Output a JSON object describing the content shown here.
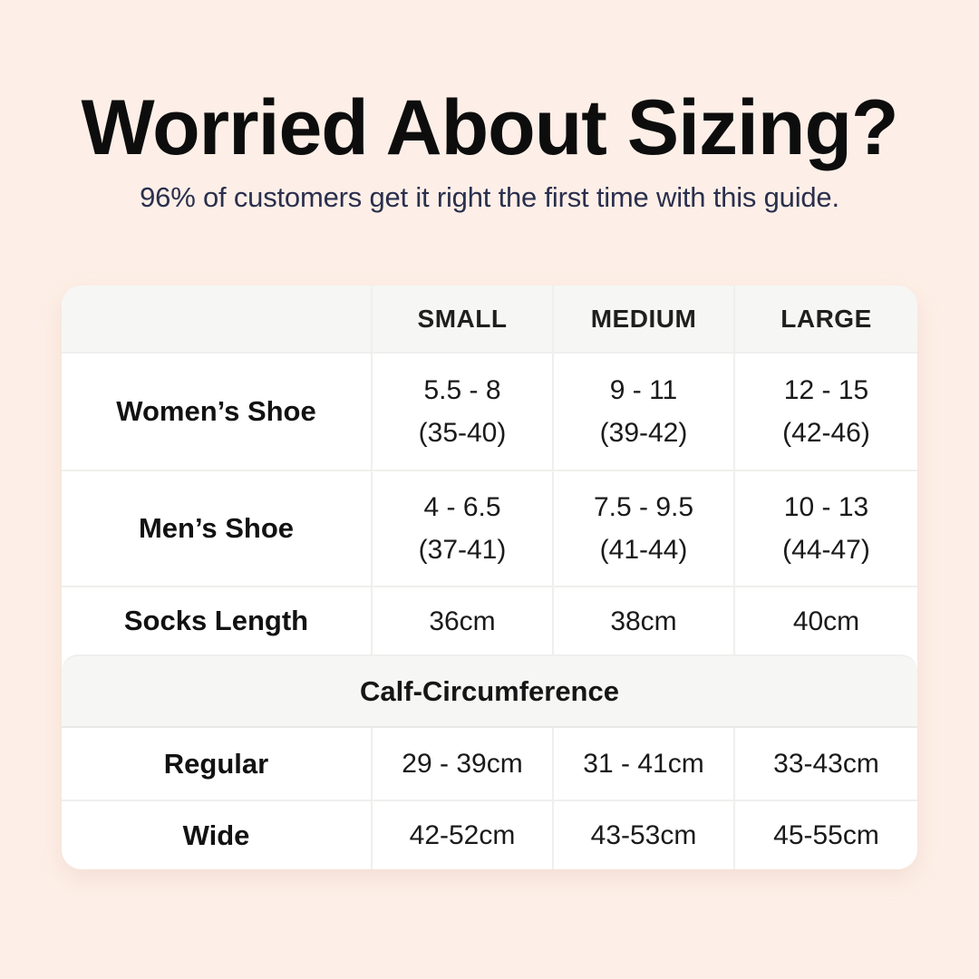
{
  "header": {
    "title": "Worried About Sizing?",
    "subtitle": "96% of customers get it right the first time with this guide."
  },
  "colors": {
    "page_background": "#fdefe7",
    "card_background": "#ffffff",
    "header_band_background": "#f6f6f4",
    "divider": "#efefed",
    "title_text": "#0d0d0d",
    "subtitle_text": "#2b2f4e",
    "cell_text": "#1a1a1a"
  },
  "table": {
    "headers": {
      "small": "SMALL",
      "medium": "MEDIUM",
      "large": "LARGE"
    },
    "rows": {
      "womens": {
        "label": "Women’s Shoe",
        "small": [
          "5.5 - 8",
          "(35-40)"
        ],
        "medium": [
          "9 - 11",
          "(39-42)"
        ],
        "large": [
          "12 - 15",
          "(42-46)"
        ]
      },
      "mens": {
        "label": "Men’s Shoe",
        "small": [
          "4 - 6.5",
          "(37-41)"
        ],
        "medium": [
          "7.5 - 9.5",
          "(41-44)"
        ],
        "large": [
          "10 - 13",
          "(44-47)"
        ]
      },
      "socks": {
        "label": "Socks Length",
        "small": "36cm",
        "medium": "38cm",
        "large": "40cm"
      }
    },
    "section": {
      "label": "Calf-Circumference",
      "rows": {
        "regular": {
          "label": "Regular",
          "small": "29 - 39cm",
          "medium": "31 - 41cm",
          "large": "33-43cm"
        },
        "wide": {
          "label": "Wide",
          "small": "42-52cm",
          "medium": "43-53cm",
          "large": "45-55cm"
        }
      }
    }
  },
  "chart_data": {
    "type": "table",
    "title": "Worried About Sizing?",
    "subtitle": "96% of customers get it right the first time with this guide.",
    "columns": [
      "",
      "SMALL",
      "MEDIUM",
      "LARGE"
    ],
    "rows": [
      [
        "Women’s Shoe",
        "5.5 - 8 (35-40)",
        "9 - 11 (39-42)",
        "12 - 15 (42-46)"
      ],
      [
        "Men’s Shoe",
        "4 - 6.5 (37-41)",
        "7.5 - 9.5 (41-44)",
        "10 - 13 (44-47)"
      ],
      [
        "Socks Length",
        "36cm",
        "38cm",
        "40cm"
      ],
      [
        "Calf-Circumference",
        "",
        "",
        ""
      ],
      [
        "Regular",
        "29 - 39cm",
        "31 - 41cm",
        "33-43cm"
      ],
      [
        "Wide",
        "42-52cm",
        "43-53cm",
        "45-55cm"
      ]
    ]
  }
}
